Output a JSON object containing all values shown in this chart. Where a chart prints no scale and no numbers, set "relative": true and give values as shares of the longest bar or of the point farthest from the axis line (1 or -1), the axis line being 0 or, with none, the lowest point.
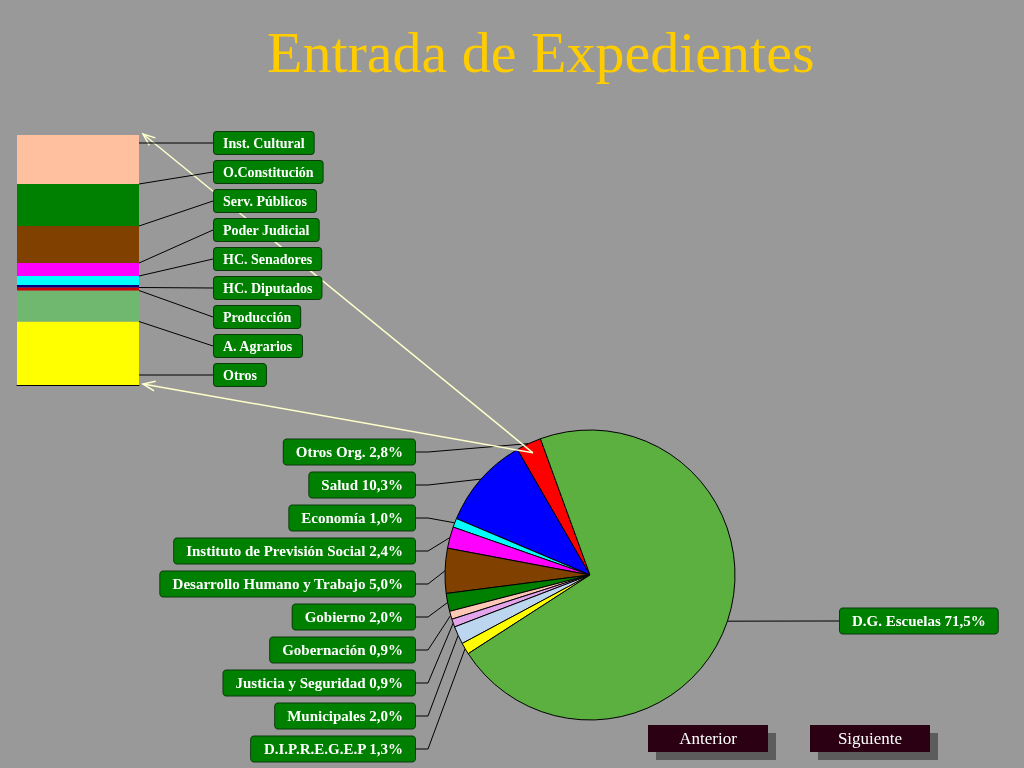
{
  "chart_data": [
    {
      "type": "pie",
      "title": "Entrada de Expedientes",
      "categories": [
        "Otros Org.",
        "Salud",
        "Economía",
        "Instituto de Previsión Social",
        "Desarrollo Humano y Trabajo",
        "Gobierno",
        "Gobernación",
        "Justicia y Seguridad",
        "Municipales",
        "D.I.P.R.E.G.E.P",
        "D.G. Escuelas"
      ],
      "values": [
        2.8,
        10.3,
        1.0,
        2.4,
        5.0,
        2.0,
        0.9,
        0.9,
        2.0,
        1.3,
        71.5
      ],
      "colors": [
        "#ff0000",
        "#0000ff",
        "#00ffff",
        "#ff00ff",
        "#804000",
        "#008000",
        "#ffc8b4",
        "#e4a4ec",
        "#bcd6f0",
        "#ffff00",
        "#5cb040"
      ],
      "value_labels": [
        "2,8%",
        "10,3%",
        "1,0%",
        "2,4%",
        "5,0%",
        "2,0%",
        "0,9%",
        "0,9%",
        "2,0%",
        "1,3%",
        "71,5%"
      ],
      "annotations": [
        "Anterior",
        "Siguiente"
      ]
    },
    {
      "type": "bar",
      "stacked": true,
      "relative": true,
      "categories": [
        null
      ],
      "series": [
        {
          "name": "Otros",
          "color": "#ffff00",
          "values": [
            0.254
          ]
        },
        {
          "name": "A. Agrarios",
          "color": "#70b870",
          "values": [
            0.124
          ]
        },
        {
          "name": "Producción",
          "color": "#cc0000",
          "values": [
            0.012
          ]
        },
        {
          "name": "HC. Diputados",
          "color": "#000080",
          "values": [
            0.01
          ]
        },
        {
          "name": "HC. Senadores",
          "color": "#00ffff",
          "values": [
            0.036
          ]
        },
        {
          "name": "Poder Judicial",
          "color": "#ff00ff",
          "values": [
            0.052
          ]
        },
        {
          "name": "Serv. Públicos",
          "color": "#804000",
          "values": [
            0.148
          ]
        },
        {
          "name": "O.Constitución",
          "color": "#008000",
          "values": [
            0.168
          ]
        },
        {
          "name": "Inst. Cultural",
          "color": "#ffc0a0",
          "values": [
            0.196
          ]
        }
      ]
    }
  ]
}
